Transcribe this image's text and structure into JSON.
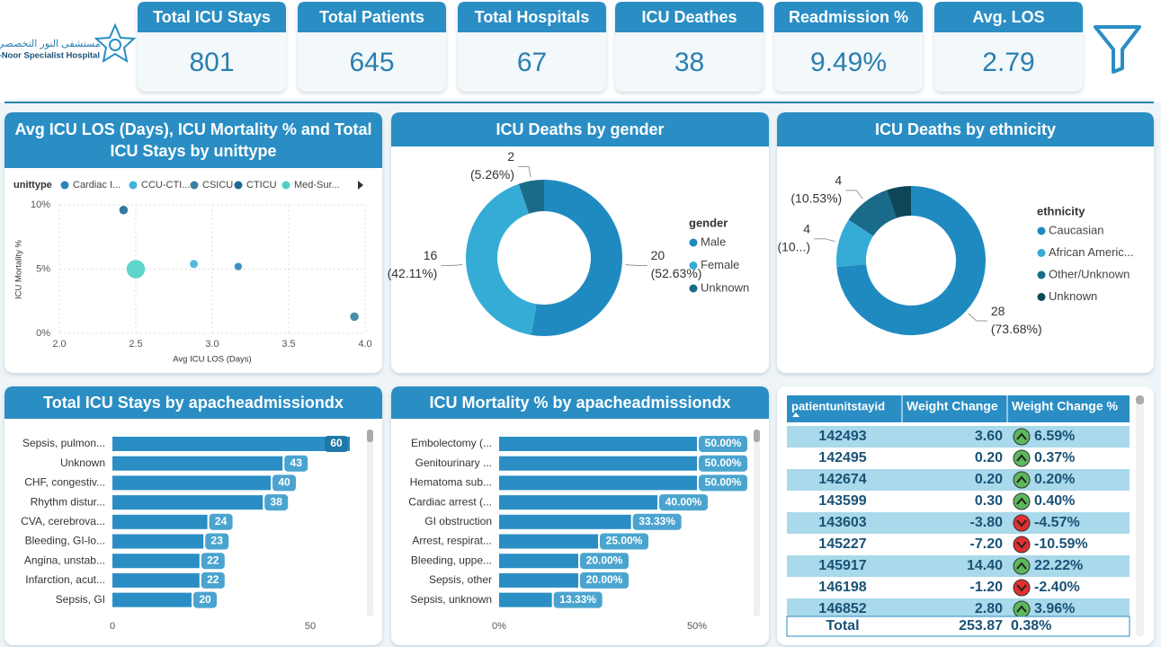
{
  "logo": {
    "arabic": "مستشفى النور التخصصي",
    "english": "Al-Noor Specialist Hospital"
  },
  "kpis": [
    {
      "label": "Total ICU Stays",
      "value": "801"
    },
    {
      "label": "Total Patients",
      "value": "645"
    },
    {
      "label": "Total Hospitals",
      "value": "67"
    },
    {
      "label": "ICU Deathes",
      "value": "38"
    },
    {
      "label": "Readmission %",
      "value": "9.49%"
    },
    {
      "label": "Avg. LOS",
      "value": "2.79"
    }
  ],
  "chart_data": [
    {
      "type": "scatter",
      "title": "Avg ICU LOS (Days), ICU Mortality % and Total ICU Stays by unittype",
      "legend_title": "unittype",
      "x_label": "Avg ICU LOS (Days)",
      "y_label": "ICU Mortality %",
      "xlim": [
        2.0,
        4.0
      ],
      "xticks": [
        {
          "value": 2.0,
          "label": "2.0"
        },
        {
          "value": 2.5,
          "label": "2.5"
        },
        {
          "value": 3.0,
          "label": "3.0"
        },
        {
          "value": 3.5,
          "label": "3.5"
        },
        {
          "value": 4.0,
          "label": "4.0"
        }
      ],
      "ylim": [
        0,
        10
      ],
      "yticks": [
        {
          "value": 0,
          "label": "0%"
        },
        {
          "value": 5,
          "label": "5%"
        },
        {
          "value": 10,
          "label": "10%"
        }
      ],
      "grid": true,
      "series": [
        {
          "name": "Cardiac I...",
          "color": "#2a86bd",
          "x": [
            3.17
          ],
          "values": [
            5.2
          ],
          "sizes": [
            70
          ]
        },
        {
          "name": "CCU-CTI...",
          "color": "#3fb3da",
          "x": [
            2.88
          ],
          "values": [
            5.4
          ],
          "sizes": [
            80
          ]
        },
        {
          "name": "CSICU",
          "color": "#3a7f9f",
          "x": [
            3.93
          ],
          "values": [
            1.3
          ],
          "sizes": [
            90
          ]
        },
        {
          "name": "CTICU",
          "color": "#1b6a93",
          "x": [
            2.42
          ],
          "values": [
            9.6
          ],
          "sizes": [
            90
          ]
        },
        {
          "name": "Med-Sur...",
          "color": "#4fd0c6",
          "x": [
            2.5
          ],
          "values": [
            5.0
          ],
          "sizes": [
            420
          ]
        }
      ]
    },
    {
      "type": "pie",
      "title": "ICU Deaths by gender",
      "legend_title": "gender",
      "categories": [
        "Male",
        "Female",
        "Unknown"
      ],
      "values": [
        20,
        16,
        2
      ],
      "percentage_labels": [
        "(52.63%)",
        "(42.11%)",
        "(5.26%)"
      ],
      "colors": [
        "#1f8ac0",
        "#35acd6",
        "#1a6b8a"
      ]
    },
    {
      "type": "pie",
      "title": "ICU Deaths by ethnicity",
      "legend_title": "ethnicity",
      "categories": [
        "Caucasian",
        "African Americ...",
        "Other/Unknown",
        "Unknown"
      ],
      "values": [
        28,
        4,
        4,
        2
      ],
      "value_labels": [
        "28",
        "4",
        "4",
        null
      ],
      "percentage_labels": [
        "(73.68%)",
        "(10...)",
        "(10.53%)",
        null
      ],
      "colors": [
        "#1f8ac0",
        "#35acd6",
        "#1a6b8a",
        "#0e4658"
      ]
    },
    {
      "type": "bar",
      "orientation": "horizontal",
      "title": "Total ICU Stays by apacheadmissiondx",
      "categories": [
        "Sepsis, pulmon...",
        "Unknown",
        "CHF, congestiv...",
        "Rhythm distur...",
        "CVA, cerebrova...",
        "Bleeding, GI-lo...",
        "Angina, unstab...",
        "Infarction, acut...",
        "Sepsis, GI"
      ],
      "values": [
        60,
        43,
        40,
        38,
        24,
        23,
        22,
        22,
        20
      ],
      "color": "#2a8ec4",
      "xlim": [
        0,
        60
      ],
      "xticks": [
        0,
        50
      ]
    },
    {
      "type": "bar",
      "orientation": "horizontal",
      "title": "ICU Mortality % by apacheadmissiondx",
      "categories": [
        "Embolectomy (...",
        "Genitourinary ...",
        "Hematoma sub...",
        "Cardiac arrest (...",
        "GI obstruction",
        "Arrest, respirat...",
        "Bleeding, uppe...",
        "Sepsis, other",
        "Sepsis, unknown"
      ],
      "values": [
        50,
        50,
        50,
        40,
        33.33,
        25,
        20,
        20,
        13.33
      ],
      "value_labels": [
        "50.00%",
        "50.00%",
        "50.00%",
        "40.00%",
        "33.33%",
        "25.00%",
        "20.00%",
        "20.00%",
        "13.33%"
      ],
      "color": "#2a8ec4",
      "xlim": [
        0,
        50
      ],
      "xticks": [
        {
          "value": 0,
          "label": "0%"
        },
        {
          "value": 50,
          "label": "50%"
        }
      ]
    }
  ],
  "table": {
    "columns": [
      "patientunitstayid",
      "Weight Change",
      "Weight Change %"
    ],
    "rows": [
      [
        "142493",
        "3.60",
        "6.59%"
      ],
      [
        "142495",
        "0.20",
        "0.37%"
      ],
      [
        "142674",
        "0.20",
        "0.20%"
      ],
      [
        "143599",
        "0.30",
        "0.40%"
      ],
      [
        "143603",
        "-3.80",
        "-4.57%"
      ],
      [
        "145227",
        "-7.20",
        "-10.59%"
      ],
      [
        "145917",
        "14.40",
        "22.22%"
      ],
      [
        "146198",
        "-1.20",
        "-2.40%"
      ],
      [
        "146852",
        "2.80",
        "3.96%"
      ]
    ],
    "total": [
      "Total",
      "253.87",
      "0.38%"
    ]
  }
}
